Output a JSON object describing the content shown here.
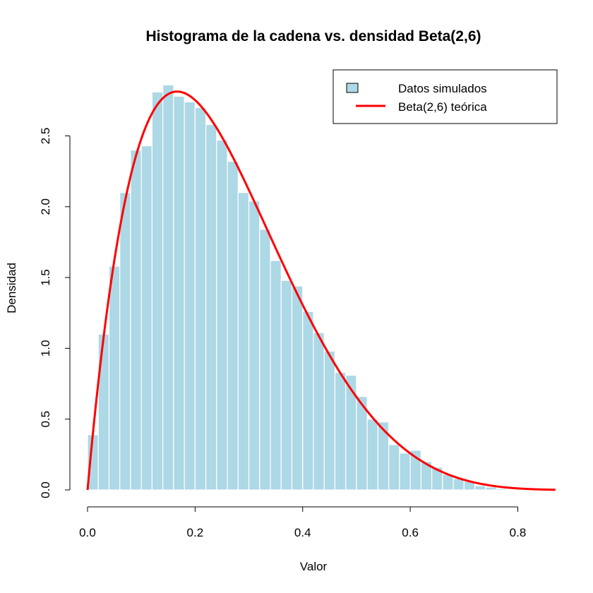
{
  "chart_data": {
    "type": "bar",
    "title": "Histograma de la cadena vs. densidad Beta(2,6)",
    "xlabel": "Valor",
    "ylabel": "Densidad",
    "xlim": [
      0.0,
      0.87
    ],
    "ylim": [
      0.0,
      2.9
    ],
    "x_ticks": [
      "0.0",
      "0.2",
      "0.4",
      "0.6",
      "0.8"
    ],
    "y_ticks": [
      "0.0",
      "0.5",
      "1.0",
      "1.5",
      "2.0",
      "2.5"
    ],
    "bin_width": 0.02,
    "bins_start": 0.0,
    "histogram_values": [
      0.39,
      1.1,
      1.58,
      2.1,
      2.4,
      2.43,
      2.81,
      2.86,
      2.78,
      2.74,
      2.7,
      2.58,
      2.47,
      2.32,
      2.1,
      2.04,
      1.84,
      1.62,
      1.48,
      1.44,
      1.26,
      1.11,
      0.98,
      0.83,
      0.81,
      0.66,
      0.5,
      0.48,
      0.32,
      0.26,
      0.28,
      0.2,
      0.16,
      0.11,
      0.08,
      0.06,
      0.03,
      0.02,
      0.01
    ],
    "density_curve": {
      "name": "Beta(2,6) teórica",
      "distribution": "Beta(2,6)",
      "alpha": 2,
      "beta": 6,
      "x_range": [
        0.0,
        0.87
      ]
    },
    "legend": {
      "position": "top-right",
      "entries": [
        "Datos simulados",
        "Beta(2,6) teórica"
      ]
    },
    "colors": {
      "bars": "#add8e6",
      "bar_border": "#ffffff",
      "curve": "#ff0000"
    },
    "grid": false
  }
}
